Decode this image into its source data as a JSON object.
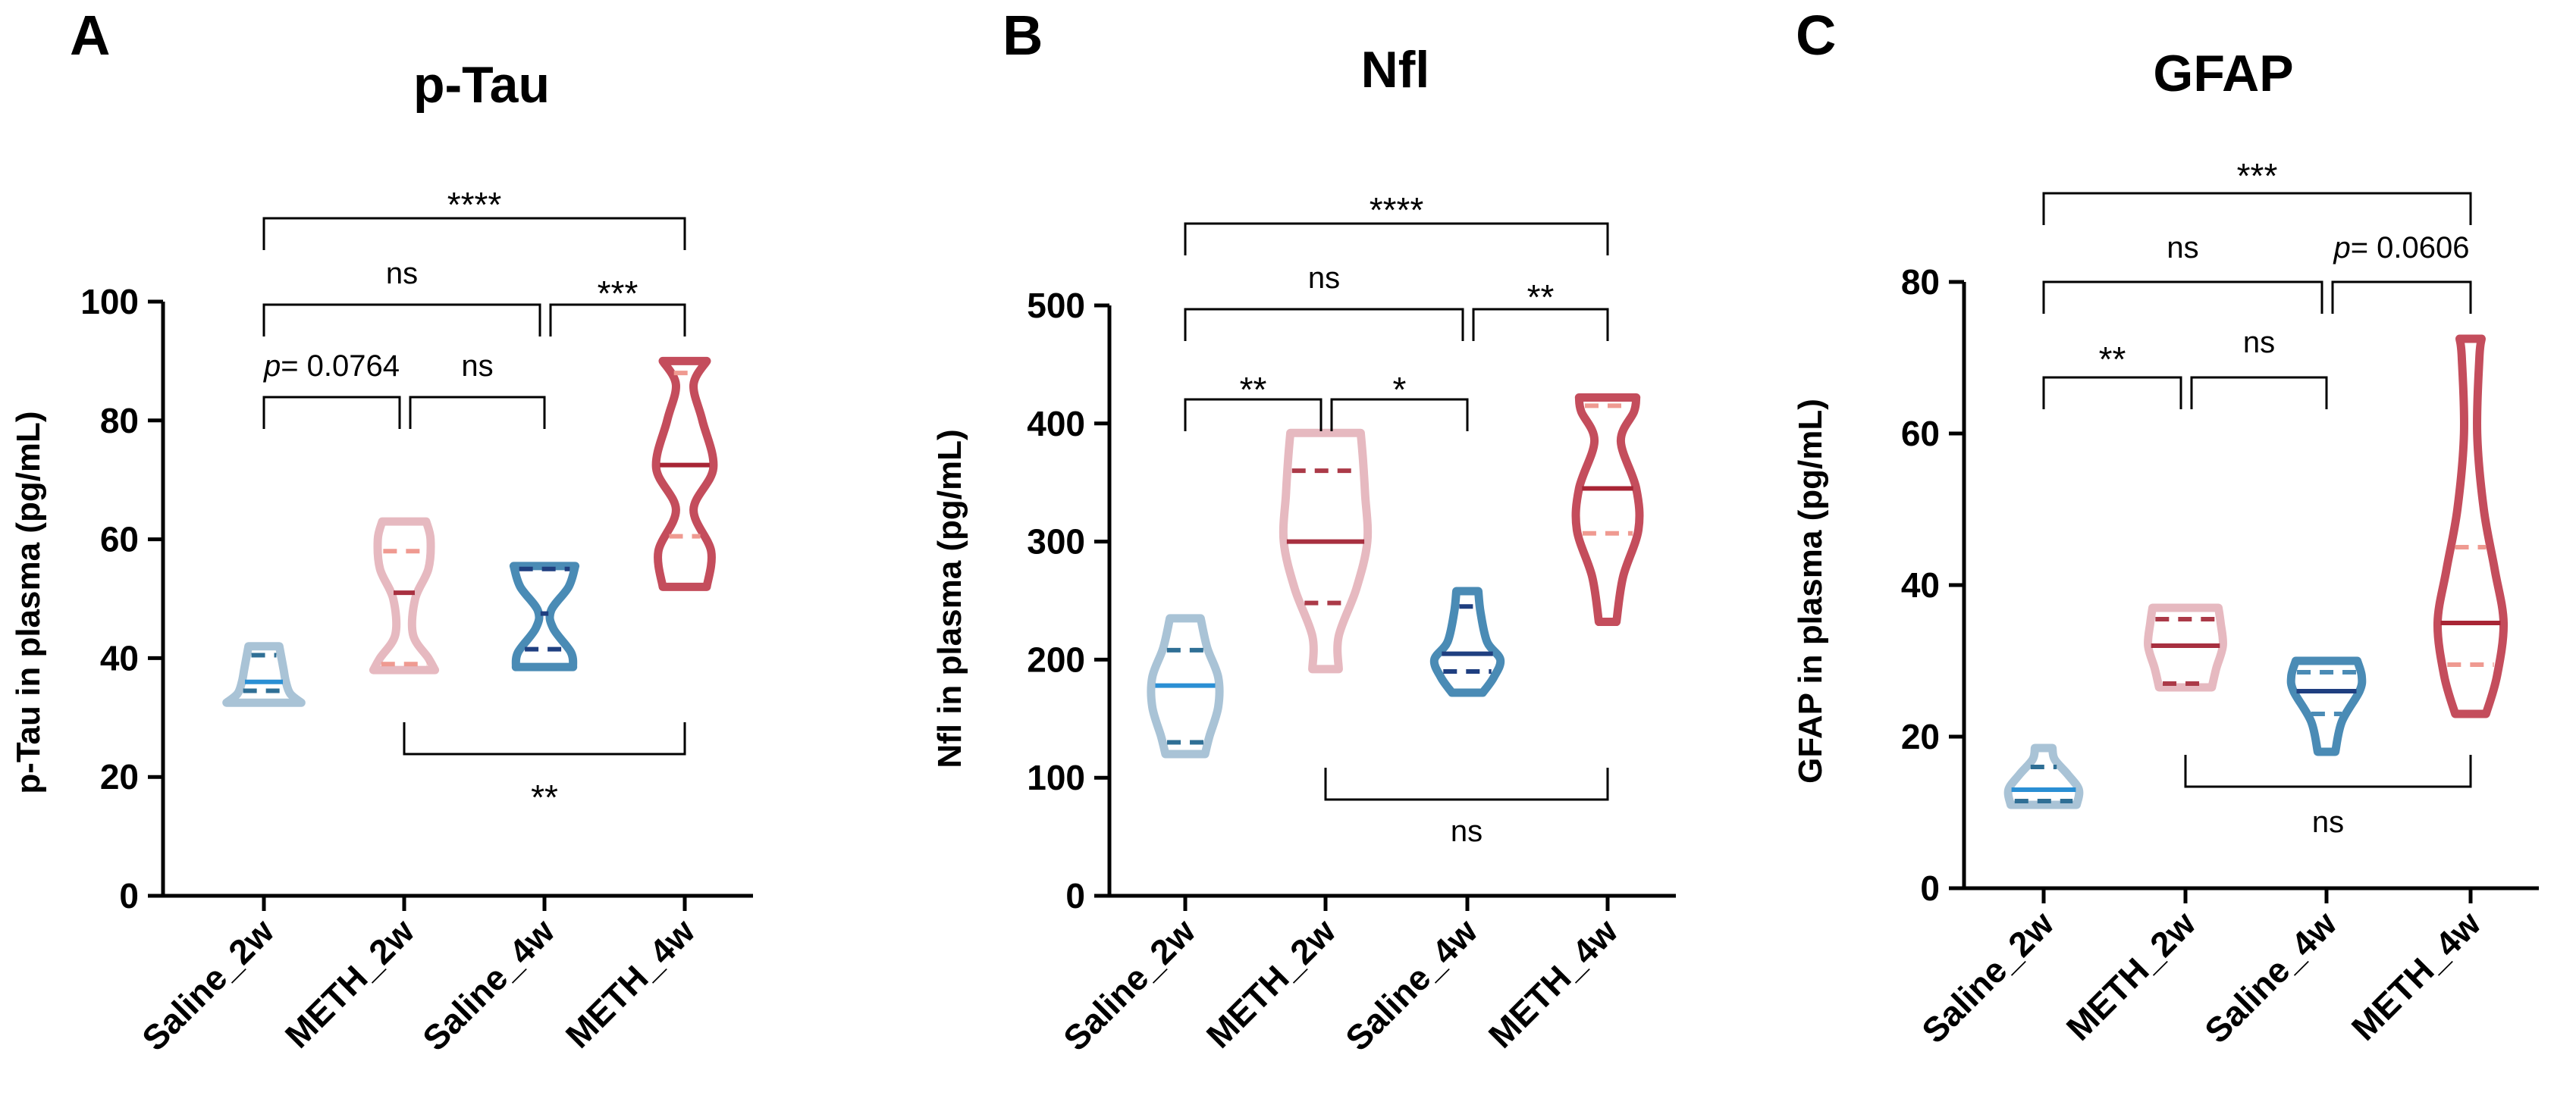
{
  "chart_data": [
    {
      "type": "violin",
      "panel": "A",
      "title": "p-Tau",
      "ylabel": "p-Tau in plasma (pg/mL)",
      "ylim": [
        0,
        100
      ],
      "yticks": [
        "0",
        "20",
        "40",
        "60",
        "80",
        "100"
      ],
      "categories": [
        "Saline_2w",
        "METH_2w",
        "Saline_4w",
        "METH_4w"
      ],
      "violins": [
        {
          "group": "Saline_2w",
          "color": "#a9c3d6",
          "median_color": "#2a8fd4",
          "quartile_color": "#2f6f95",
          "min": 32.5,
          "max": 42,
          "median": 36,
          "q1": 34.5,
          "q3": 40.5,
          "profile": [
            [
              32.5,
              0.85
            ],
            [
              34,
              0.6
            ],
            [
              36,
              0.5
            ],
            [
              38,
              0.45
            ],
            [
              40,
              0.4
            ],
            [
              42,
              0.35
            ]
          ]
        },
        {
          "group": "METH_2w",
          "color": "#e6b9c0",
          "median_color": "#a83040",
          "quartile_color": "#ef9a91",
          "min": 38,
          "max": 63,
          "median": 51,
          "q1": 39,
          "q3": 58,
          "profile": [
            [
              38,
              0.7
            ],
            [
              40,
              0.55
            ],
            [
              44,
              0.2
            ],
            [
              50,
              0.25
            ],
            [
              55,
              0.55
            ],
            [
              60,
              0.6
            ],
            [
              63,
              0.5
            ]
          ]
        },
        {
          "group": "Saline_4w",
          "color": "#4a8bb5",
          "median_color": "#1f3f80",
          "quartile_color": "#1f3f80",
          "min": 38.5,
          "max": 55.5,
          "median": 47.5,
          "q1": 41.5,
          "q3": 55,
          "profile": [
            [
              38.5,
              0.65
            ],
            [
              41,
              0.6
            ],
            [
              45,
              0.2
            ],
            [
              48,
              0.15
            ],
            [
              52,
              0.55
            ],
            [
              55.5,
              0.7
            ]
          ]
        },
        {
          "group": "METH_4w",
          "color": "#c44d5c",
          "median_color": "#a82535",
          "quartile_color": "#ef9a91",
          "min": 52,
          "max": 90,
          "median": 72.5,
          "q1": 60.5,
          "q3": 88,
          "profile": [
            [
              52,
              0.5
            ],
            [
              58,
              0.6
            ],
            [
              65,
              0.2
            ],
            [
              72,
              0.65
            ],
            [
              80,
              0.4
            ],
            [
              86,
              0.2
            ],
            [
              90,
              0.5
            ]
          ]
        }
      ],
      "comparisons": [
        {
          "from": "Saline_2w",
          "to": "METH_4w",
          "label": "****"
        },
        {
          "from": "Saline_2w",
          "to": "Saline_4w",
          "label": "ns"
        },
        {
          "from": "Saline_4w",
          "to": "METH_4w",
          "label": "***"
        },
        {
          "from": "Saline_2w",
          "to": "METH_2w",
          "label_prefix": "p",
          "label": "= 0.0764"
        },
        {
          "from": "METH_2w",
          "to": "Saline_4w",
          "label": "ns"
        },
        {
          "from": "METH_2w",
          "to": "METH_4w",
          "label": "**",
          "position": "below"
        }
      ]
    },
    {
      "type": "violin",
      "panel": "B",
      "title": "Nfl",
      "ylabel": "Nfl in plasma (pg/mL)",
      "ylim": [
        0,
        500
      ],
      "yticks": [
        "0",
        "100",
        "200",
        "300",
        "400",
        "500"
      ],
      "categories": [
        "Saline_2w",
        "METH_2w",
        "Saline_4w",
        "METH_4w"
      ],
      "violins": [
        {
          "group": "Saline_2w",
          "color": "#a9c3d6",
          "median_color": "#2a8fd4",
          "quartile_color": "#2f6f95",
          "min": 120,
          "max": 235,
          "median": 178,
          "q1": 130,
          "q3": 208,
          "profile": [
            [
              120,
              0.45
            ],
            [
              135,
              0.55
            ],
            [
              160,
              0.75
            ],
            [
              185,
              0.75
            ],
            [
              210,
              0.5
            ],
            [
              235,
              0.35
            ]
          ]
        },
        {
          "group": "METH_2w",
          "color": "#e6b9c0",
          "median_color": "#a83040",
          "quartile_color": "#ab3a48",
          "min": 192,
          "max": 392,
          "median": 300,
          "q1": 248,
          "q3": 360,
          "profile": [
            [
              192,
              0.3
            ],
            [
              220,
              0.3
            ],
            [
              260,
              0.7
            ],
            [
              300,
              0.95
            ],
            [
              340,
              0.9
            ],
            [
              370,
              0.85
            ],
            [
              392,
              0.8
            ]
          ]
        },
        {
          "group": "Saline_4w",
          "color": "#4a8bb5",
          "median_color": "#1f3f80",
          "quartile_color": "#1f3f80",
          "min": 172,
          "max": 258,
          "median": 205,
          "q1": 190,
          "q3": 245,
          "profile": [
            [
              172,
              0.35
            ],
            [
              185,
              0.6
            ],
            [
              200,
              0.75
            ],
            [
              215,
              0.45
            ],
            [
              240,
              0.3
            ],
            [
              258,
              0.25
            ]
          ]
        },
        {
          "group": "METH_4w",
          "color": "#c44d5c",
          "median_color": "#a82535",
          "quartile_color": "#ef9a91",
          "min": 232,
          "max": 422,
          "median": 345,
          "q1": 307,
          "q3": 415,
          "profile": [
            [
              232,
              0.2
            ],
            [
              270,
              0.35
            ],
            [
              310,
              0.7
            ],
            [
              345,
              0.65
            ],
            [
              385,
              0.3
            ],
            [
              410,
              0.6
            ],
            [
              422,
              0.65
            ]
          ]
        }
      ],
      "comparisons": [
        {
          "from": "Saline_2w",
          "to": "METH_4w",
          "label": "****"
        },
        {
          "from": "Saline_2w",
          "to": "Saline_4w",
          "label": "ns"
        },
        {
          "from": "Saline_4w",
          "to": "METH_4w",
          "label": "**"
        },
        {
          "from": "Saline_2w",
          "to": "METH_2w",
          "label": "**"
        },
        {
          "from": "METH_2w",
          "to": "Saline_4w",
          "label": "*"
        },
        {
          "from": "METH_2w",
          "to": "METH_4w",
          "label": "ns",
          "position": "below"
        }
      ]
    },
    {
      "type": "violin",
      "panel": "C",
      "title": "GFAP",
      "ylabel": "GFAP in plasma (pg/mL)",
      "ylim": [
        0,
        80
      ],
      "yticks": [
        "0",
        "20",
        "40",
        "60",
        "80"
      ],
      "categories": [
        "Saline_2w",
        "METH_2w",
        "Saline_4w",
        "METH_4w"
      ],
      "violins": [
        {
          "group": "Saline_2w",
          "color": "#a9c3d6",
          "median_color": "#2a8fd4",
          "quartile_color": "#2f6f95",
          "min": 11,
          "max": 18.5,
          "median": 13,
          "q1": 11.5,
          "q3": 16,
          "profile": [
            [
              11,
              0.75
            ],
            [
              13,
              0.8
            ],
            [
              15,
              0.55
            ],
            [
              17,
              0.25
            ],
            [
              18.5,
              0.2
            ]
          ]
        },
        {
          "group": "METH_2w",
          "color": "#e6b9c0",
          "median_color": "#a83040",
          "quartile_color": "#ab3a48",
          "min": 26.5,
          "max": 37,
          "median": 32,
          "q1": 27,
          "q3": 35.5,
          "profile": [
            [
              26.5,
              0.6
            ],
            [
              29,
              0.7
            ],
            [
              32,
              0.85
            ],
            [
              35,
              0.8
            ],
            [
              37,
              0.75
            ]
          ]
        },
        {
          "group": "Saline_4w",
          "color": "#4a8bb5",
          "median_color": "#1f3f80",
          "quartile_color": "#4a8bb5",
          "min": 18,
          "max": 30,
          "median": 26,
          "q1": 23,
          "q3": 28.5,
          "profile": [
            [
              18,
              0.2
            ],
            [
              22,
              0.35
            ],
            [
              26,
              0.75
            ],
            [
              28,
              0.8
            ],
            [
              30,
              0.7
            ]
          ]
        },
        {
          "group": "METH_4w",
          "color": "#c44d5c",
          "median_color": "#a82535",
          "quartile_color": "#ef9a91",
          "min": 23,
          "max": 72.5,
          "median": 35,
          "q1": 29.5,
          "q3": 45,
          "profile": [
            [
              23,
              0.35
            ],
            [
              28,
              0.6
            ],
            [
              35,
              0.75
            ],
            [
              42,
              0.55
            ],
            [
              50,
              0.3
            ],
            [
              60,
              0.15
            ],
            [
              70,
              0.2
            ],
            [
              72.5,
              0.25
            ]
          ]
        }
      ],
      "comparisons": [
        {
          "from": "Saline_2w",
          "to": "METH_4w",
          "label": "***"
        },
        {
          "from": "Saline_2w",
          "to": "Saline_4w",
          "label": "ns"
        },
        {
          "from": "Saline_4w",
          "to": "METH_4w",
          "label_prefix": "p",
          "label": "= 0.0606"
        },
        {
          "from": "Saline_2w",
          "to": "METH_2w",
          "label": "**"
        },
        {
          "from": "METH_2w",
          "to": "Saline_4w",
          "label": "ns"
        },
        {
          "from": "METH_2w",
          "to": "METH_4w",
          "label": "ns",
          "position": "below"
        }
      ]
    }
  ]
}
